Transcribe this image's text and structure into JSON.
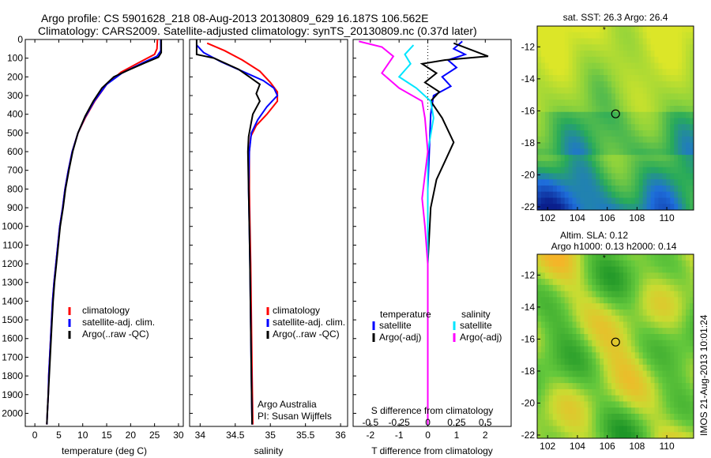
{
  "header": {
    "line1": "Argo profile: CS 5901628_218 08-Aug-2013 20130809_629 16.187S 106.562E",
    "line2": "Climatology: CARS2009. Satellite-adjusted climatology: synTS_20130809.nc (0.37d later)"
  },
  "colors": {
    "climatology": "#ff0000",
    "satellite": "#0000ff",
    "argo": "#000000",
    "sat_salinity": "#00e5ff",
    "argo_salinity": "#ff00ff"
  },
  "chart_data": [
    {
      "type": "line",
      "name": "temperature",
      "xlabel": "temperature (deg C)",
      "xlim": [
        -2,
        31
      ],
      "xticks": [
        0,
        5,
        10,
        15,
        20,
        25,
        30
      ],
      "ylim": [
        0,
        2070
      ],
      "yticks": [
        0,
        100,
        200,
        300,
        400,
        500,
        600,
        700,
        800,
        900,
        1000,
        1100,
        1200,
        1300,
        1400,
        1500,
        1600,
        1700,
        1800,
        1900,
        2000
      ],
      "legend": [
        "climatology",
        "satellite-adj. clim.",
        "Argo(..raw -QC)"
      ],
      "legend_placement": "center",
      "series": [
        {
          "name": "climatology",
          "color": "#ff0000",
          "points": [
            [
              25.6,
              0
            ],
            [
              25.5,
              50
            ],
            [
              25.0,
              80
            ],
            [
              22,
              120
            ],
            [
              18,
              175
            ],
            [
              15,
              240
            ],
            [
              12.5,
              330
            ],
            [
              10.5,
              420
            ],
            [
              9,
              500
            ],
            [
              7.8,
              600
            ],
            [
              7,
              700
            ],
            [
              6.3,
              800
            ],
            [
              5.8,
              900
            ],
            [
              5.2,
              1000
            ],
            [
              4.8,
              1100
            ],
            [
              4.4,
              1200
            ],
            [
              4.0,
              1300
            ],
            [
              3.7,
              1400
            ],
            [
              3.5,
              1500
            ],
            [
              3.3,
              1600
            ],
            [
              3.1,
              1700
            ],
            [
              2.9,
              1800
            ],
            [
              2.8,
              1900
            ],
            [
              2.6,
              2000
            ],
            [
              2.5,
              2060
            ]
          ]
        },
        {
          "name": "satellite-adj. clim.",
          "color": "#0000ff",
          "points": [
            [
              26.3,
              0
            ],
            [
              26.3,
              60
            ],
            [
              25.5,
              90
            ],
            [
              22.5,
              125
            ],
            [
              18.2,
              180
            ],
            [
              15,
              240
            ],
            [
              12.4,
              330
            ],
            [
              10.4,
              420
            ],
            [
              9,
              500
            ],
            [
              7.8,
              600
            ],
            [
              7,
              700
            ],
            [
              6.3,
              800
            ],
            [
              5.8,
              900
            ],
            [
              5.2,
              1000
            ],
            [
              4.8,
              1100
            ],
            [
              4.4,
              1200
            ],
            [
              4.0,
              1300
            ],
            [
              3.7,
              1400
            ],
            [
              3.5,
              1500
            ],
            [
              3.3,
              1600
            ],
            [
              3.1,
              1700
            ],
            [
              2.9,
              1800
            ],
            [
              2.8,
              1900
            ],
            [
              2.6,
              2000
            ],
            [
              2.5,
              2060
            ]
          ]
        },
        {
          "name": "Argo(..raw -QC)",
          "color": "#000000",
          "points": [
            [
              26.4,
              0
            ],
            [
              26.4,
              70
            ],
            [
              25.8,
              95
            ],
            [
              23,
              125
            ],
            [
              19,
              170
            ],
            [
              16.5,
              200
            ],
            [
              14,
              260
            ],
            [
              12.2,
              330
            ],
            [
              10.5,
              410
            ],
            [
              9,
              500
            ],
            [
              7.9,
              600
            ],
            [
              7.1,
              700
            ],
            [
              6.4,
              800
            ],
            [
              5.9,
              900
            ],
            [
              5.3,
              1000
            ],
            [
              4.9,
              1100
            ],
            [
              4.5,
              1200
            ],
            [
              4.1,
              1300
            ],
            [
              3.8,
              1400
            ],
            [
              3.6,
              1500
            ],
            [
              3.4,
              1600
            ],
            [
              3.2,
              1700
            ],
            [
              3.0,
              1800
            ],
            [
              2.8,
              1900
            ],
            [
              2.6,
              2000
            ],
            [
              2.5,
              2060
            ]
          ]
        }
      ]
    },
    {
      "type": "line",
      "name": "salinity",
      "xlabel": "salinity",
      "xlim": [
        33.85,
        36.1
      ],
      "xticks": [
        34,
        34.5,
        35,
        35.5,
        36
      ],
      "xtick_labels": [
        "34",
        "34.5",
        "35",
        "35.5",
        "36"
      ],
      "ylim": [
        0,
        2070
      ],
      "legend": [
        "climatology",
        "satellite-adj. clim.",
        "Argo(..raw -QC)"
      ],
      "legend_placement": "center-right",
      "annotation": [
        "Argo Australia",
        "PI: Susan Wijffels"
      ],
      "series": [
        {
          "name": "climatology",
          "color": "#ff0000",
          "points": [
            [
              34.1,
              20
            ],
            [
              34.35,
              60
            ],
            [
              34.6,
              110
            ],
            [
              34.85,
              170
            ],
            [
              35.0,
              230
            ],
            [
              35.1,
              280
            ],
            [
              35.1,
              330
            ],
            [
              34.95,
              400
            ],
            [
              34.8,
              460
            ],
            [
              34.72,
              520
            ],
            [
              34.7,
              600
            ],
            [
              34.7,
              800
            ],
            [
              34.71,
              1000
            ],
            [
              34.72,
              1200
            ],
            [
              34.73,
              1500
            ],
            [
              34.74,
              1800
            ],
            [
              34.75,
              2060
            ]
          ]
        },
        {
          "name": "satellite-adj. clim.",
          "color": "#0000ff",
          "points": [
            [
              33.95,
              30
            ],
            [
              34.05,
              70
            ],
            [
              34.3,
              120
            ],
            [
              34.6,
              170
            ],
            [
              34.9,
              220
            ],
            [
              35.05,
              260
            ],
            [
              35.1,
              300
            ],
            [
              34.95,
              360
            ],
            [
              34.82,
              430
            ],
            [
              34.73,
              500
            ],
            [
              34.7,
              600
            ],
            [
              34.69,
              800
            ],
            [
              34.7,
              1000
            ],
            [
              34.71,
              1200
            ],
            [
              34.72,
              1500
            ],
            [
              34.73,
              1800
            ],
            [
              34.74,
              2060
            ]
          ]
        },
        {
          "name": "Argo(..raw -QC)",
          "color": "#000000",
          "points": [
            [
              33.95,
              0
            ],
            [
              33.95,
              80
            ],
            [
              34.2,
              100
            ],
            [
              34.55,
              160
            ],
            [
              34.7,
              200
            ],
            [
              34.85,
              240
            ],
            [
              34.8,
              290
            ],
            [
              34.85,
              330
            ],
            [
              34.75,
              400
            ],
            [
              34.72,
              460
            ],
            [
              34.69,
              520
            ],
            [
              34.68,
              600
            ],
            [
              34.69,
              800
            ],
            [
              34.7,
              1000
            ],
            [
              34.71,
              1200
            ],
            [
              34.72,
              1500
            ],
            [
              34.73,
              1800
            ],
            [
              34.74,
              2060
            ]
          ]
        }
      ]
    },
    {
      "type": "line",
      "name": "difference",
      "xlabel": "T difference from climatology",
      "xlim": [
        -2.6,
        2.9
      ],
      "xticks": [
        -2,
        -1,
        0,
        1,
        2
      ],
      "top_axis_label": "S difference from climatology",
      "top_ticks": [
        "-0.5",
        "-0.25",
        "0",
        "0.25",
        "0.5"
      ],
      "ylim": [
        0,
        2070
      ],
      "legend": {
        "temperature": [
          "satellite",
          "Argo(-adj)"
        ],
        "salinity": [
          "satellite",
          "Argo(-adj)"
        ]
      },
      "legend_headers": [
        "temperature",
        "salinity"
      ],
      "legend_placement": "center",
      "series": [
        {
          "name": "temperature satellite",
          "color": "#0000ff",
          "points": [
            [
              1.2,
              10
            ],
            [
              0.9,
              50
            ],
            [
              1.3,
              80
            ],
            [
              0.7,
              110
            ],
            [
              1.0,
              150
            ],
            [
              0.5,
              200
            ],
            [
              0.8,
              250
            ],
            [
              0.2,
              300
            ],
            [
              0.1,
              400
            ],
            [
              0.05,
              600
            ],
            [
              0,
              800
            ],
            [
              0,
              1200
            ],
            [
              0,
              1600
            ],
            [
              0,
              2060
            ]
          ]
        },
        {
          "name": "temperature Argo(-adj)",
          "color": "#000000",
          "points": [
            [
              0.9,
              20
            ],
            [
              2.1,
              90
            ],
            [
              0.6,
              110
            ],
            [
              -0.2,
              130
            ],
            [
              0.3,
              180
            ],
            [
              -0.1,
              230
            ],
            [
              0.4,
              280
            ],
            [
              0.1,
              330
            ],
            [
              0.5,
              420
            ],
            [
              0.9,
              550
            ],
            [
              0.6,
              650
            ],
            [
              0.3,
              750
            ],
            [
              0.1,
              900
            ],
            [
              0,
              1200
            ],
            [
              0,
              1600
            ],
            [
              0,
              2060
            ]
          ]
        },
        {
          "name": "salinity satellite",
          "color": "#00e5ff",
          "points": [
            [
              -0.5,
              30
            ],
            [
              -0.8,
              80
            ],
            [
              -0.6,
              130
            ],
            [
              -1.0,
              200
            ],
            [
              -0.4,
              260
            ],
            [
              0.1,
              330
            ],
            [
              0.2,
              420
            ],
            [
              0,
              600
            ],
            [
              0,
              800
            ],
            [
              0,
              1200
            ],
            [
              0,
              1600
            ],
            [
              0,
              2060
            ]
          ]
        },
        {
          "name": "salinity Argo(-adj)",
          "color": "#ff00ff",
          "points": [
            [
              -2.4,
              10
            ],
            [
              -1.6,
              40
            ],
            [
              -1.2,
              90
            ],
            [
              -1.6,
              180
            ],
            [
              -1.0,
              260
            ],
            [
              -0.2,
              330
            ],
            [
              -0.1,
              420
            ],
            [
              0,
              600
            ],
            [
              -0.2,
              850
            ],
            [
              -0.1,
              1000
            ],
            [
              0,
              1200
            ],
            [
              0,
              1600
            ],
            [
              0,
              2060
            ]
          ]
        }
      ]
    },
    {
      "type": "heatmap",
      "name": "sst-map",
      "title": "sat. SST: 26.3 Argo: 26.4",
      "xlim": [
        101.3,
        111.8
      ],
      "ylim": [
        -22.2,
        -10.7
      ],
      "xticks": [
        102,
        104,
        106,
        108,
        110
      ],
      "yticks": [
        -12,
        -14,
        -16,
        -18,
        -20,
        -22
      ],
      "marker": {
        "lon": 106.562,
        "lat": -16.187
      },
      "star": {
        "lon": 105.8,
        "lat": -10.9
      }
    },
    {
      "type": "heatmap",
      "name": "sla-map",
      "title_line1": "Altim. SLA: 0.12",
      "title_line2": "Argo h1000: 0.13 h2000: 0.14",
      "xlim": [
        101.3,
        111.8
      ],
      "ylim": [
        -22.2,
        -10.7
      ],
      "xticks": [
        102,
        104,
        106,
        108,
        110
      ],
      "yticks": [
        -12,
        -14,
        -16,
        -18,
        -20,
        -22
      ],
      "marker": {
        "lon": 106.562,
        "lat": -16.187
      },
      "star": {
        "lon": 105.8,
        "lat": -10.9
      }
    }
  ],
  "side_text": "IMOS 21-Aug-2013 10:01:24"
}
